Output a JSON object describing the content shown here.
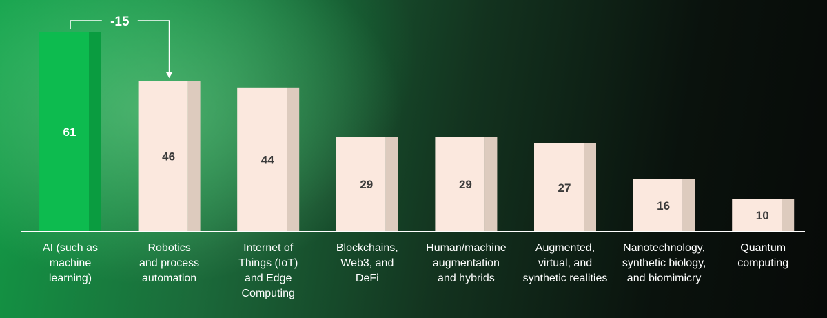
{
  "chart_data": {
    "type": "bar",
    "categories": [
      [
        "AI (such as",
        "machine",
        "learning)"
      ],
      [
        "Robotics",
        "and process",
        "automation"
      ],
      [
        "Internet of",
        "Things (IoT)",
        "and Edge",
        "Computing"
      ],
      [
        "Blockchains,",
        "Web3, and",
        "DeFi"
      ],
      [
        "Human/machine",
        "augmentation",
        "and hybrids"
      ],
      [
        "Augmented,",
        "virtual, and",
        "synthetic realities"
      ],
      [
        "Nanotechnology,",
        "synthetic biology,",
        "and biomimicry"
      ],
      [
        "Quantum",
        "computing"
      ]
    ],
    "values": [
      61,
      46,
      44,
      29,
      29,
      27,
      16,
      10
    ],
    "value_labels": [
      "61",
      "46",
      "44",
      "29",
      "29",
      "27",
      "16",
      "10"
    ],
    "ylim": [
      0,
      65
    ],
    "highlight_index": 0,
    "annotation": {
      "text": "-15",
      "from_index": 0,
      "to_index": 1
    },
    "colors": {
      "highlight_front": "#0dbb4f",
      "highlight_side": "#0a9c40",
      "highlight_text": "#ffffff",
      "bar_front": "#fbe8de",
      "bar_side": "#ddcbbe",
      "bar_text": "#3a3a3a",
      "axis": "#ffffff",
      "annotation": "#ffffff"
    }
  }
}
